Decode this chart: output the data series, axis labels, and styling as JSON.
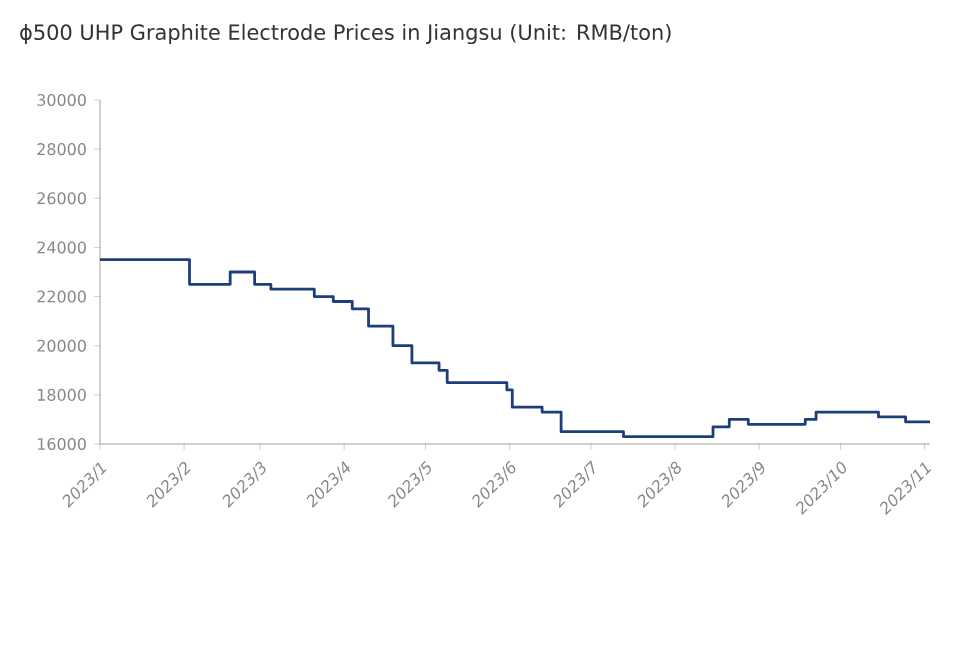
{
  "chart_data": {
    "type": "step",
    "title": "ϕ500 UHP Graphite Electrode Prices in Jiangsu (Unit: RMB/ton)",
    "x": [
      "2023-01-01",
      "2023-02-03",
      "2023-02-18",
      "2023-02-27",
      "2023-03-05",
      "2023-03-21",
      "2023-03-28",
      "2023-04-04",
      "2023-04-10",
      "2023-04-19",
      "2023-04-26",
      "2023-05-06",
      "2023-05-09",
      "2023-05-31",
      "2023-06-02",
      "2023-06-13",
      "2023-06-20",
      "2023-07-13",
      "2023-08-15",
      "2023-08-21",
      "2023-08-28",
      "2023-09-18",
      "2023-09-22",
      "2023-10-15",
      "2023-10-25",
      "2023-11-03"
    ],
    "series": [
      {
        "color": "#1b3f7a",
        "values": [
          23500,
          22500,
          23000,
          22500,
          22300,
          22000,
          21800,
          21500,
          20800,
          20000,
          19300,
          19000,
          18500,
          18200,
          17500,
          17300,
          16500,
          16300,
          16700,
          17000,
          16800,
          17000,
          17300,
          17100,
          16900,
          16900
        ]
      }
    ],
    "xlim": [
      "2023-01-01",
      "2023-11-03"
    ],
    "xticks": [
      {
        "value": "2023-01-01",
        "label": "2023/1"
      },
      {
        "value": "2023-02-01",
        "label": "2023/2"
      },
      {
        "value": "2023-03-01",
        "label": "2023/3"
      },
      {
        "value": "2023-04-01",
        "label": "2023/4"
      },
      {
        "value": "2023-05-01",
        "label": "2023/5"
      },
      {
        "value": "2023-06-01",
        "label": "2023/6"
      },
      {
        "value": "2023-07-01",
        "label": "2023/7"
      },
      {
        "value": "2023-08-01",
        "label": "2023/8"
      },
      {
        "value": "2023-09-01",
        "label": "2023/9"
      },
      {
        "value": "2023-10-01",
        "label": "2023/10"
      },
      {
        "value": "2023-11-01",
        "label": "2023/11"
      }
    ],
    "ylim": [
      16000,
      30000
    ],
    "yticks": [
      16000,
      18000,
      20000,
      22000,
      24000,
      26000,
      28000,
      30000
    ],
    "grid": false
  }
}
